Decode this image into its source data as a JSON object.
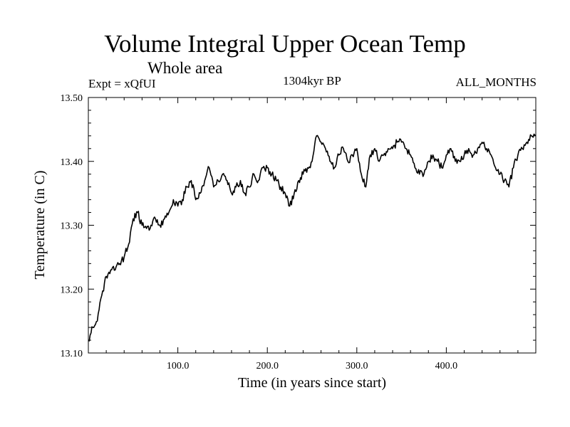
{
  "chart_data": {
    "type": "line",
    "title": "Volume Integral Upper Ocean Temp",
    "subtitle": "Whole area",
    "header_left": "Expt = xQfUI",
    "header_center": "1304kyr BP",
    "header_right": "ALL_MONTHS",
    "xlabel": "Time (in years since start)",
    "ylabel": "Temperature (in C)",
    "xlim": [
      0,
      500
    ],
    "ylim": [
      13.1,
      13.5
    ],
    "x_ticks": [
      100,
      200,
      300,
      400
    ],
    "x_tick_labels": [
      "100.0",
      "200.0",
      "300.0",
      "400.0"
    ],
    "y_ticks": [
      13.1,
      13.2,
      13.3,
      13.4,
      13.5
    ],
    "y_tick_labels": [
      "13.10",
      "13.20",
      "13.30",
      "13.40",
      "13.50"
    ],
    "grid": false,
    "series": [
      {
        "name": "Volume Integral Upper Ocean Temp",
        "x": [
          0,
          5,
          10,
          15,
          20,
          25,
          30,
          35,
          40,
          45,
          50,
          55,
          60,
          65,
          70,
          75,
          80,
          85,
          90,
          95,
          100,
          105,
          110,
          115,
          120,
          125,
          130,
          135,
          140,
          145,
          150,
          155,
          160,
          165,
          170,
          175,
          180,
          185,
          190,
          195,
          200,
          205,
          210,
          215,
          220,
          225,
          230,
          235,
          240,
          245,
          250,
          255,
          260,
          265,
          270,
          275,
          280,
          285,
          290,
          295,
          300,
          305,
          310,
          315,
          320,
          325,
          330,
          335,
          340,
          345,
          350,
          355,
          360,
          365,
          370,
          375,
          380,
          385,
          390,
          395,
          400,
          405,
          410,
          415,
          420,
          425,
          430,
          435,
          440,
          445,
          450,
          455,
          460,
          465,
          470,
          475,
          480,
          485,
          490,
          495,
          500
        ],
        "values": [
          13.12,
          13.14,
          13.15,
          13.19,
          13.22,
          13.23,
          13.23,
          13.24,
          13.25,
          13.27,
          13.31,
          13.32,
          13.3,
          13.295,
          13.3,
          13.31,
          13.3,
          13.31,
          13.32,
          13.34,
          13.33,
          13.34,
          13.36,
          13.37,
          13.34,
          13.35,
          13.37,
          13.39,
          13.36,
          13.37,
          13.38,
          13.37,
          13.35,
          13.36,
          13.37,
          13.35,
          13.36,
          13.38,
          13.37,
          13.39,
          13.39,
          13.38,
          13.37,
          13.36,
          13.35,
          13.33,
          13.35,
          13.37,
          13.38,
          13.39,
          13.4,
          13.44,
          13.43,
          13.42,
          13.4,
          13.39,
          13.41,
          13.42,
          13.4,
          13.41,
          13.42,
          13.38,
          13.36,
          13.41,
          13.42,
          13.4,
          13.41,
          13.42,
          13.42,
          13.43,
          13.43,
          13.42,
          13.41,
          13.39,
          13.38,
          13.38,
          13.4,
          13.41,
          13.4,
          13.39,
          13.41,
          13.42,
          13.4,
          13.4,
          13.41,
          13.42,
          13.41,
          13.42,
          13.43,
          13.42,
          13.41,
          13.39,
          13.38,
          13.37,
          13.36,
          13.39,
          13.41,
          13.42,
          13.43,
          13.44,
          13.44
        ]
      }
    ]
  }
}
